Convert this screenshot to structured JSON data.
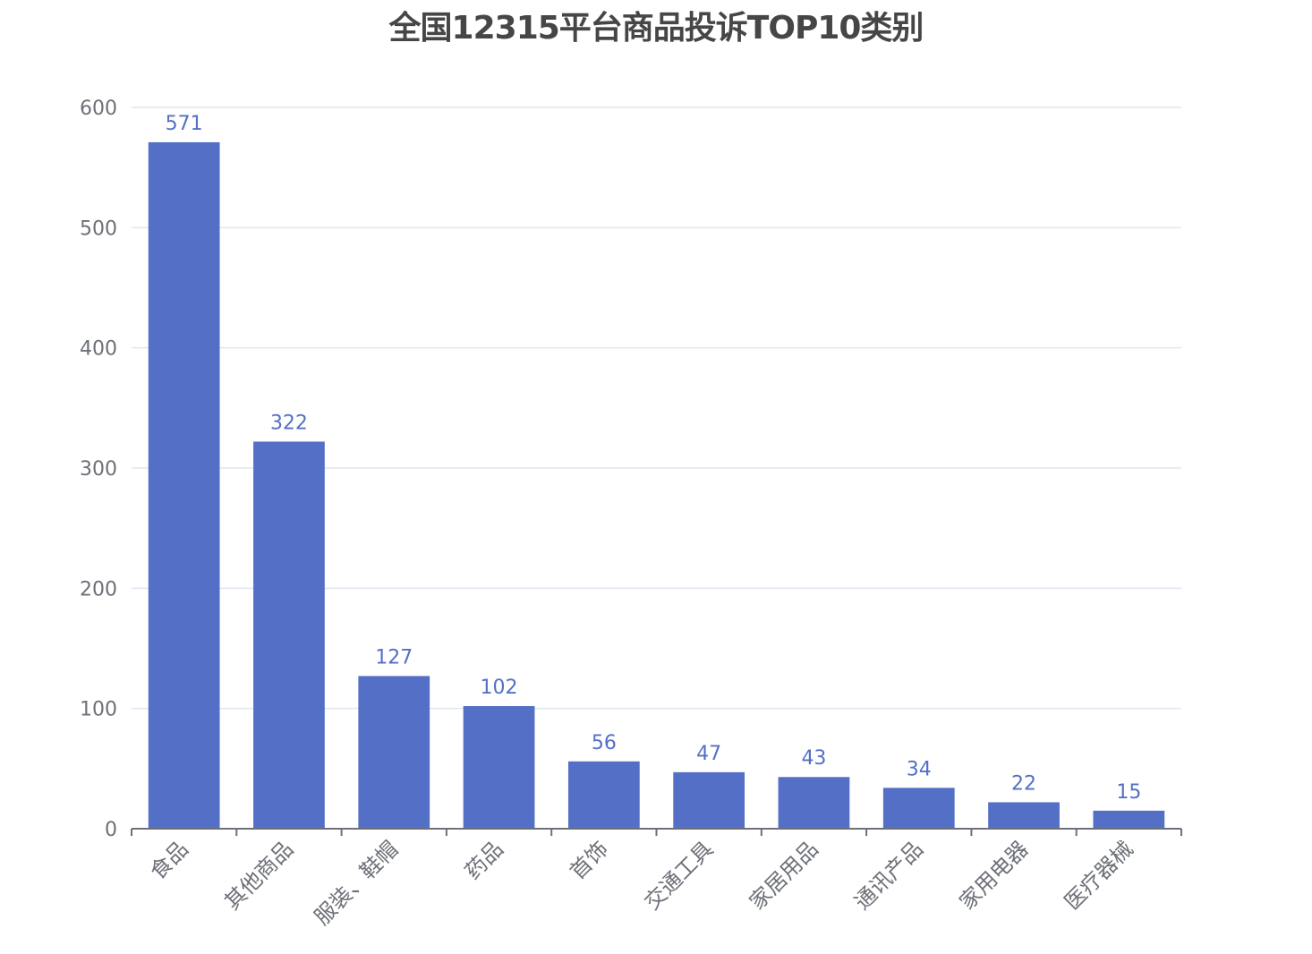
{
  "chart_data": {
    "type": "bar",
    "title": "全国12315平台商品投诉TOP10类别",
    "categories": [
      "食品",
      "其他商品",
      "服装、鞋帽",
      "药品",
      "首饰",
      "交通工具",
      "家居用品",
      "通讯产品",
      "家用电器",
      "医疗器械"
    ],
    "values": [
      571,
      322,
      127,
      102,
      56,
      47,
      43,
      34,
      22,
      15
    ],
    "xlabel": "",
    "ylabel": "",
    "ylim": [
      0,
      600
    ],
    "yticks": [
      0,
      100,
      200,
      300,
      400,
      500,
      600
    ],
    "grid": true,
    "legend": "none",
    "colors": {
      "bar": "#5470c6",
      "data_label": "#5470c6",
      "axis": "#6e7079",
      "grid": "#e0e6f1",
      "title": "#464646"
    }
  }
}
